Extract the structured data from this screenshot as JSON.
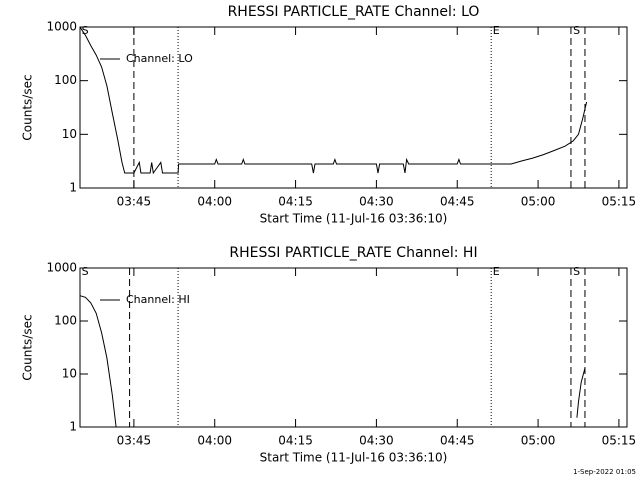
{
  "chart_data": [
    {
      "type": "line",
      "title": "RHESSI PARTICLE_RATE Channel: LO",
      "xlabel": "Start Time (11-Jul-16 03:36:10)",
      "ylabel": "Counts/sec",
      "log_y": true,
      "legend": "upper left",
      "xlim": [
        215,
        316.5
      ],
      "ylim": [
        1,
        1000
      ],
      "xticks": [
        {
          "value": 225,
          "label": "03:45"
        },
        {
          "value": 240,
          "label": "04:00"
        },
        {
          "value": 255,
          "label": "04:15"
        },
        {
          "value": 270,
          "label": "04:30"
        },
        {
          "value": 285,
          "label": "04:45"
        },
        {
          "value": 300,
          "label": "05:00"
        },
        {
          "value": 315,
          "label": "05:15"
        }
      ],
      "yticks": [
        1,
        10,
        100,
        1000
      ],
      "x": [
        215,
        216,
        217,
        218,
        219,
        220,
        221,
        222,
        222.8,
        223.3,
        225,
        226,
        226.3,
        228,
        228.3,
        228.6,
        230,
        230.3,
        233.2,
        233.3,
        240,
        240.3,
        240.6,
        245,
        245.3,
        245.6,
        255,
        258,
        258.3,
        258.6,
        262,
        262.3,
        262.6,
        270,
        270.3,
        270.6,
        275,
        275.3,
        275.6,
        276,
        285,
        285.3,
        285.6,
        295,
        297,
        299,
        301,
        303,
        305,
        306.5,
        307.5,
        308.3,
        309
      ],
      "series": [
        {
          "name": "Channel: LO",
          "color": "#000000",
          "values": [
            1000,
            700,
            450,
            300,
            180,
            80,
            25,
            8,
            3,
            1.9,
            1.9,
            3,
            1.9,
            1.9,
            3,
            1.9,
            3,
            1.9,
            1.9,
            2.8,
            2.8,
            3.4,
            2.8,
            2.8,
            3.4,
            2.8,
            2.8,
            2.8,
            1.9,
            2.8,
            2.8,
            3.4,
            2.8,
            2.8,
            1.9,
            2.8,
            2.8,
            1.9,
            3.4,
            2.8,
            2.8,
            3.4,
            2.8,
            2.8,
            3.2,
            3.6,
            4.2,
            5,
            6,
            7.5,
            10,
            20,
            40
          ]
        }
      ],
      "vlines": [
        {
          "x": 225,
          "style": "dashed"
        },
        {
          "x": 233.2,
          "style": "dotted"
        },
        {
          "x": 291.3,
          "style": "dotted"
        },
        {
          "x": 306.1,
          "style": "dashed"
        },
        {
          "x": 308.7,
          "style": "dashed"
        }
      ],
      "annotations": [
        {
          "x": 215.3,
          "text": "S"
        },
        {
          "x": 291.6,
          "text": "E"
        },
        {
          "x": 306.5,
          "text": "S"
        }
      ]
    },
    {
      "type": "line",
      "title": "RHESSI PARTICLE_RATE Channel: HI",
      "xlabel": "Start Time (11-Jul-16 03:36:10)",
      "ylabel": "Counts/sec",
      "log_y": true,
      "legend": "upper left",
      "xlim": [
        215,
        316.5
      ],
      "ylim": [
        1,
        1000
      ],
      "xticks": [
        {
          "value": 225,
          "label": "03:45"
        },
        {
          "value": 240,
          "label": "04:00"
        },
        {
          "value": 255,
          "label": "04:15"
        },
        {
          "value": 270,
          "label": "04:30"
        },
        {
          "value": 285,
          "label": "04:45"
        },
        {
          "value": 300,
          "label": "05:00"
        },
        {
          "value": 315,
          "label": "05:15"
        }
      ],
      "yticks": [
        1,
        10,
        100,
        1000
      ],
      "x": [
        215,
        216,
        217,
        218,
        219,
        220,
        221,
        221.7,
        221.8,
        307.2,
        307.5,
        308,
        308.7
      ],
      "series": [
        {
          "name": "Channel: HI",
          "color": "#000000",
          "values": [
            300,
            280,
            220,
            140,
            60,
            20,
            4,
            1,
            null,
            1.5,
            3,
            7,
            13
          ]
        }
      ],
      "vlines": [
        {
          "x": 224.2,
          "style": "dashed"
        },
        {
          "x": 233.2,
          "style": "dotted"
        },
        {
          "x": 291.3,
          "style": "dotted"
        },
        {
          "x": 306.1,
          "style": "dashed"
        },
        {
          "x": 308.7,
          "style": "dashed"
        }
      ],
      "annotations": [
        {
          "x": 215.3,
          "text": "S"
        },
        {
          "x": 291.6,
          "text": "E"
        },
        {
          "x": 306.5,
          "text": "S"
        }
      ]
    }
  ],
  "footer": "1-Sep-2022 01:05"
}
